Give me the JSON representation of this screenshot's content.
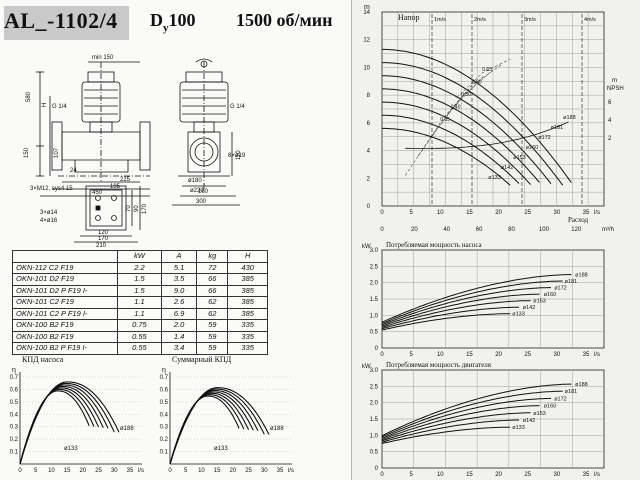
{
  "header": {
    "model": "AL_-1102/4",
    "dn_prefix": "D",
    "dn_sub": "y",
    "dn_value": "100",
    "speed": "1500 об/мин"
  },
  "dimensions": {
    "front": {
      "m150": "min 150",
      "h580": "580",
      "h": "H",
      "g14": "G 1/4",
      "d150": "150",
      "d107": "107",
      "d24": "24",
      "d450": "450",
      "d225": "225",
      "d195": "195"
    },
    "side": {
      "g14": "G 1/4",
      "h110": "110",
      "holes": "8×ø19",
      "d180": "ø180",
      "d220": "ø220",
      "d160": "160",
      "d300": "300"
    },
    "base": {
      "m12": "3×M12, sys4 15",
      "d14": "3×ø14",
      "d16": "4×ø16",
      "d70": "70",
      "d90": "90",
      "d170": "170",
      "d120": "120",
      "d170b": "170",
      "d210": "210"
    }
  },
  "spec_table": {
    "headers": [
      "",
      "kW",
      "A",
      "kg",
      "H"
    ],
    "rows": [
      [
        "OKN-112 C2 F19",
        "2.2",
        "5.1",
        "72",
        "430"
      ],
      [
        "OKN-101 D2 F19",
        "1.5",
        "3.5",
        "66",
        "385"
      ],
      [
        "OKN-101 D2 P F19 I-",
        "1.5",
        "9.0",
        "66",
        "385"
      ],
      [
        "OKN-101 C2 F19",
        "1.1",
        "2.6",
        "62",
        "385"
      ],
      [
        "OKN-101 C2 P F19 I-",
        "1.1",
        "6.9",
        "62",
        "385"
      ],
      [
        "OKN-100 B2 F19",
        "0.75",
        "2.0",
        "59",
        "335"
      ],
      [
        "OKN-100 B2 F19",
        "0.55",
        "1.4",
        "59",
        "335"
      ],
      [
        "OKN-100 B2 P F19 I-",
        "0.55",
        "3.4",
        "59",
        "335"
      ]
    ]
  },
  "small_charts": {
    "pump_eff": {
      "title": "КПД насоса",
      "ylabel": "η",
      "unit": "l/s",
      "y_ticks": [
        "0.1",
        "0.2",
        "0.3",
        "0.4",
        "0.5",
        "0.6",
        "0.7"
      ],
      "x_ticks": [
        "0",
        "5",
        "10",
        "15",
        "20",
        "25",
        "30",
        "35"
      ],
      "label_top": "ø188",
      "label_bottom": "ø133"
    },
    "total_eff": {
      "title": "Суммарный КПД",
      "ylabel": "η",
      "unit": "l/s",
      "y_ticks": [
        "0.1",
        "0.2",
        "0.3",
        "0.4",
        "0.5",
        "0.6",
        "0.7"
      ],
      "x_ticks": [
        "0",
        "5",
        "10",
        "15",
        "20",
        "25",
        "30",
        "35"
      ],
      "label_top": "ø188",
      "label_bottom": "ø133"
    }
  },
  "head_chart": {
    "title": "Напор",
    "ylabel": "m",
    "npsh_label": "NPSH",
    "npsh_unit": "m",
    "x_label": "Расход",
    "unit_ls": "l/s",
    "unit_m3h": "m³/h",
    "y_ticks": [
      "0",
      "2",
      "4",
      "6",
      "8",
      "10",
      "12",
      "14"
    ],
    "npsh_ticks": [
      "2",
      "4",
      "6"
    ],
    "x_ticks_ls": [
      "0",
      "5",
      "10",
      "15",
      "20",
      "25",
      "30",
      "35"
    ],
    "x_ticks_m3h": [
      "0",
      "20",
      "40",
      "60",
      "80",
      "100",
      "120"
    ],
    "velocities": [
      "1m/s",
      "2m/s",
      "3m/s",
      "4m/s"
    ],
    "diameters": [
      "ø188",
      "ø181",
      "ø172",
      "ø160",
      "ø153",
      "ø142",
      "ø133"
    ],
    "eff_labels": [
      "0.35",
      "0.40",
      "0.50",
      "0.60",
      "0.65"
    ]
  },
  "power_pump_chart": {
    "title": "Потребляемая мощность насоса",
    "ylabel": "kW",
    "unit": "l/s",
    "y_ticks": [
      "0",
      "0.5",
      "1.0",
      "1.5",
      "2.0",
      "2.5",
      "3.0"
    ],
    "x_ticks": [
      "0",
      "5",
      "10",
      "15",
      "20",
      "25",
      "30",
      "35"
    ],
    "diameters": [
      "ø188",
      "ø181",
      "ø172",
      "ø160",
      "ø153",
      "ø142",
      "ø133"
    ]
  },
  "power_motor_chart": {
    "title": "Потребляемая мощность двигателя",
    "ylabel": "kW",
    "unit": "l/s",
    "y_ticks": [
      "0",
      "0.5",
      "1.0",
      "1.5",
      "2.0",
      "2.5",
      "3.0"
    ],
    "x_ticks": [
      "0",
      "5",
      "10",
      "15",
      "20",
      "25",
      "30",
      "35"
    ],
    "diameters": [
      "ø188",
      "ø181",
      "ø172",
      "ø160",
      "ø153",
      "ø142",
      "ø133"
    ]
  },
  "colors": {
    "line": "#111111",
    "grid": "#8a8a86",
    "title_box": "#c9c9c9"
  }
}
